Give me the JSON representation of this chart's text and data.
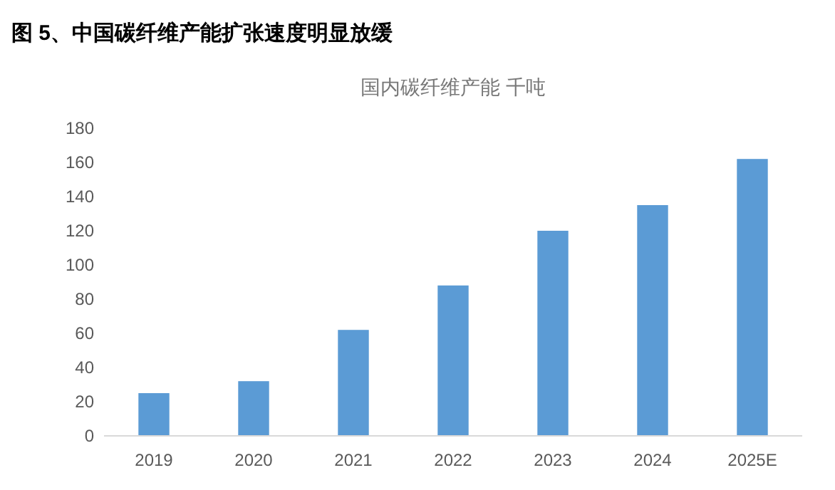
{
  "chart_data": {
    "type": "bar",
    "title": "图 5、中国碳纤维产能扩张速度明显放缓",
    "subtitle": "国内碳纤维产能 千吨",
    "categories": [
      "2019",
      "2020",
      "2021",
      "2022",
      "2023",
      "2024",
      "2025E"
    ],
    "values": [
      25,
      32,
      62,
      88,
      120,
      135,
      162
    ],
    "color": "#5b9bd5",
    "ylim": [
      0,
      180
    ],
    "yticks": [
      0,
      20,
      40,
      60,
      80,
      100,
      120,
      140,
      160,
      180
    ],
    "grid": false
  }
}
